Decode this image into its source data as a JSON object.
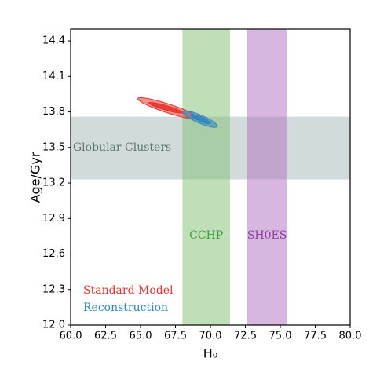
{
  "chart_data": {
    "type": "contour",
    "xlabel": "H₀",
    "ylabel": "Age/Gyr",
    "xlim": [
      60,
      80
    ],
    "ylim": [
      12.0,
      14.5
    ],
    "xticks": [
      {
        "value": 60,
        "label": "60.0"
      },
      {
        "value": 62.5,
        "label": "62.5"
      },
      {
        "value": 65,
        "label": "65.0"
      },
      {
        "value": 67.5,
        "label": "67.5"
      },
      {
        "value": 70,
        "label": "70.0"
      },
      {
        "value": 72.5,
        "label": "72.5"
      },
      {
        "value": 75,
        "label": "75.0"
      },
      {
        "value": 77.5,
        "label": "77.5"
      },
      {
        "value": 80,
        "label": "80.0"
      }
    ],
    "yticks": [
      {
        "value": 12,
        "label": "12.0"
      },
      {
        "value": 12.3,
        "label": "12.3"
      },
      {
        "value": 12.6,
        "label": "12.6"
      },
      {
        "value": 12.9,
        "label": "12.9"
      },
      {
        "value": 13.2,
        "label": "13.2"
      },
      {
        "value": 13.5,
        "label": "13.5"
      },
      {
        "value": 13.8,
        "label": "13.8"
      },
      {
        "value": 14.1,
        "label": "14.1"
      },
      {
        "value": 14.4,
        "label": "14.4"
      }
    ],
    "vbands": [
      {
        "name": "CCHP",
        "color": "#7fbf73",
        "range": [
          68.0,
          71.4
        ]
      },
      {
        "name": "SH0ES",
        "color": "#b070c0",
        "range": [
          72.6,
          75.5
        ]
      }
    ],
    "hbands": [
      {
        "name": "Globular Clusters",
        "color": "#8ea5a5",
        "range": [
          13.23,
          13.76
        ]
      }
    ],
    "series": [
      {
        "name": "Standard Model",
        "color": "#e8342c",
        "contours": [
          {
            "h0": 66.95,
            "age": 13.83,
            "h0_half": 2.15,
            "age_half": 0.09,
            "rho": -0.9
          },
          {
            "h0": 66.8,
            "age": 13.835,
            "h0_half": 1.2,
            "age_half": 0.045,
            "rho": -0.9
          }
        ]
      },
      {
        "name": "Reconstruction",
        "color": "#2f86bf",
        "contours": [
          {
            "h0": 69.25,
            "age": 13.74,
            "h0_half": 1.25,
            "age_half": 0.07,
            "rho": -0.85
          },
          {
            "h0": 69.3,
            "age": 13.74,
            "h0_half": 0.7,
            "age_half": 0.04,
            "rho": -0.85
          }
        ]
      }
    ]
  }
}
